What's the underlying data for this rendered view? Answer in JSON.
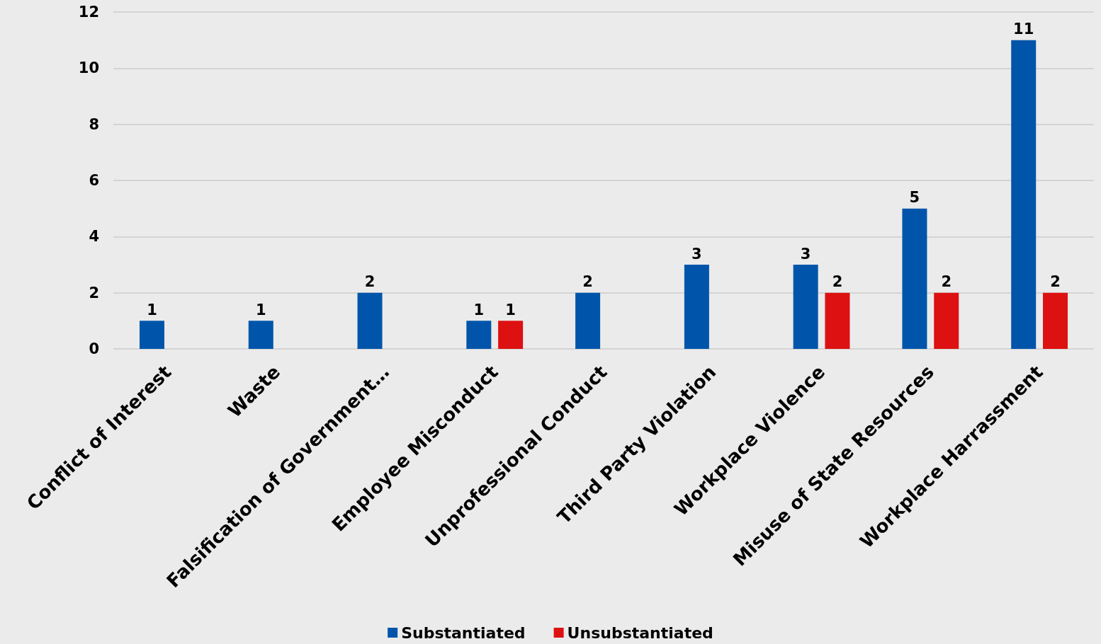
{
  "chart_data": {
    "type": "bar",
    "categories": [
      "Conflict of Interest",
      "Waste",
      "Falsification of Government…",
      "Employee Misconduct",
      "Unprofessional Conduct",
      "Third Party Violation",
      "Workplace Violence",
      "Misuse of State Resources",
      "Workplace Harrassment"
    ],
    "series": [
      {
        "name": "Substantiated",
        "color": "#0055aa",
        "values": [
          1,
          1,
          2,
          1,
          2,
          3,
          3,
          5,
          11
        ]
      },
      {
        "name": "Unsubstantiated",
        "color": "#dd1111",
        "values": [
          null,
          null,
          null,
          1,
          null,
          null,
          2,
          2,
          2
        ]
      }
    ],
    "ylim": [
      0,
      12
    ],
    "yticks": [
      0,
      2,
      4,
      6,
      8,
      10,
      12
    ],
    "grid": "y",
    "legend": "bottom",
    "data_labels": true
  }
}
